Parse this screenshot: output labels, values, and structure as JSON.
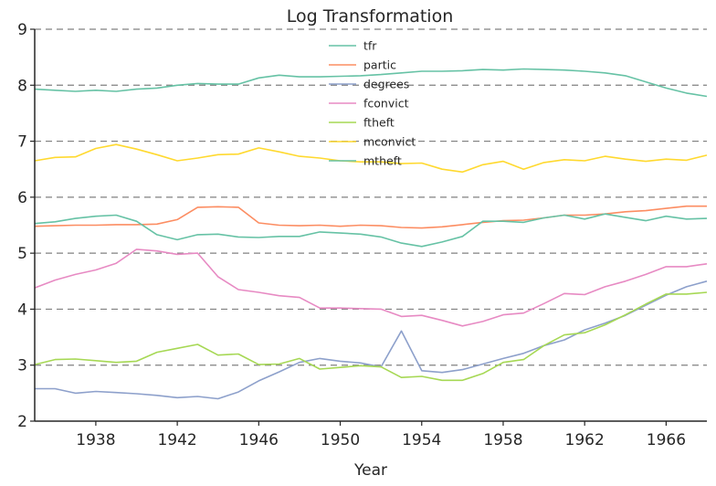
{
  "chart_data": {
    "type": "line",
    "title": "Log Transformation",
    "xlabel": "Year",
    "ylabel": "",
    "xlim": [
      1935,
      1968
    ],
    "ylim": [
      2,
      9
    ],
    "xticks": [
      1938,
      1942,
      1946,
      1950,
      1954,
      1958,
      1962,
      1966
    ],
    "yticks": [
      2,
      3,
      4,
      5,
      6,
      7,
      8,
      9
    ],
    "grid": "horizontal dashed",
    "legend_position": "top-center",
    "x": [
      1935,
      1936,
      1937,
      1938,
      1939,
      1940,
      1941,
      1942,
      1943,
      1944,
      1945,
      1946,
      1947,
      1948,
      1949,
      1950,
      1951,
      1952,
      1953,
      1954,
      1955,
      1956,
      1957,
      1958,
      1959,
      1960,
      1961,
      1962,
      1963,
      1964,
      1965,
      1966,
      1967,
      1968
    ],
    "series": [
      {
        "name": "tfr",
        "color": "#66c2a5",
        "values": [
          7.93,
          7.91,
          7.89,
          7.91,
          7.89,
          7.93,
          7.95,
          8.0,
          8.03,
          8.02,
          8.02,
          8.13,
          8.18,
          8.15,
          8.15,
          8.16,
          8.17,
          8.19,
          8.22,
          8.25,
          8.25,
          8.26,
          8.28,
          8.27,
          8.29,
          8.28,
          8.27,
          8.25,
          8.22,
          8.17,
          8.06,
          7.95,
          7.86,
          7.8
        ]
      },
      {
        "name": "partic",
        "color": "#fc8d62",
        "values": [
          5.48,
          5.49,
          5.5,
          5.5,
          5.51,
          5.51,
          5.52,
          5.6,
          5.82,
          5.83,
          5.82,
          5.54,
          5.5,
          5.49,
          5.5,
          5.48,
          5.5,
          5.49,
          5.46,
          5.45,
          5.47,
          5.51,
          5.55,
          5.58,
          5.59,
          5.63,
          5.68,
          5.68,
          5.7,
          5.74,
          5.76,
          5.8,
          5.84,
          5.84
        ]
      },
      {
        "name": "degrees",
        "color": "#8da0cb",
        "values": [
          2.58,
          2.58,
          2.5,
          2.53,
          2.51,
          2.49,
          2.46,
          2.42,
          2.44,
          2.4,
          2.52,
          2.72,
          2.88,
          3.05,
          3.12,
          3.07,
          3.04,
          2.97,
          3.61,
          2.9,
          2.87,
          2.92,
          3.02,
          3.12,
          3.21,
          3.35,
          3.45,
          3.63,
          3.75,
          3.89,
          4.07,
          4.25,
          4.4,
          4.5
        ]
      },
      {
        "name": "fconvict",
        "color": "#e78ac3",
        "values": [
          4.38,
          4.52,
          4.62,
          4.7,
          4.82,
          5.07,
          5.04,
          4.98,
          5.0,
          4.58,
          4.35,
          4.3,
          4.24,
          4.21,
          4.02,
          4.02,
          4.01,
          4.0,
          3.87,
          3.89,
          3.8,
          3.7,
          3.78,
          3.9,
          3.93,
          4.1,
          4.28,
          4.26,
          4.4,
          4.5,
          4.62,
          4.76,
          4.76,
          4.81
        ]
      },
      {
        "name": "ftheft",
        "color": "#a6d854",
        "values": [
          3.01,
          3.1,
          3.11,
          3.08,
          3.05,
          3.07,
          3.23,
          3.3,
          3.37,
          3.18,
          3.2,
          3.01,
          3.02,
          3.12,
          2.93,
          2.96,
          2.99,
          2.97,
          2.78,
          2.8,
          2.73,
          2.73,
          2.85,
          3.05,
          3.1,
          3.35,
          3.54,
          3.58,
          3.72,
          3.9,
          4.09,
          4.27,
          4.27,
          4.3
        ]
      },
      {
        "name": "mconvict",
        "color": "#ffd92f",
        "values": [
          6.65,
          6.71,
          6.72,
          6.87,
          6.94,
          6.86,
          6.76,
          6.65,
          6.7,
          6.76,
          6.77,
          6.88,
          6.81,
          6.73,
          6.7,
          6.65,
          6.63,
          6.63,
          6.6,
          6.61,
          6.5,
          6.45,
          6.58,
          6.64,
          6.5,
          6.62,
          6.67,
          6.65,
          6.73,
          6.68,
          6.64,
          6.68,
          6.66,
          6.75
        ]
      },
      {
        "name": "mtheft",
        "color": "#66c2a5",
        "values": [
          5.53,
          5.56,
          5.62,
          5.66,
          5.68,
          5.57,
          5.33,
          5.24,
          5.33,
          5.34,
          5.29,
          5.28,
          5.3,
          5.3,
          5.38,
          5.36,
          5.34,
          5.29,
          5.18,
          5.12,
          5.2,
          5.3,
          5.57,
          5.57,
          5.55,
          5.63,
          5.68,
          5.61,
          5.7,
          5.64,
          5.58,
          5.66,
          5.61,
          5.62
        ]
      }
    ]
  }
}
